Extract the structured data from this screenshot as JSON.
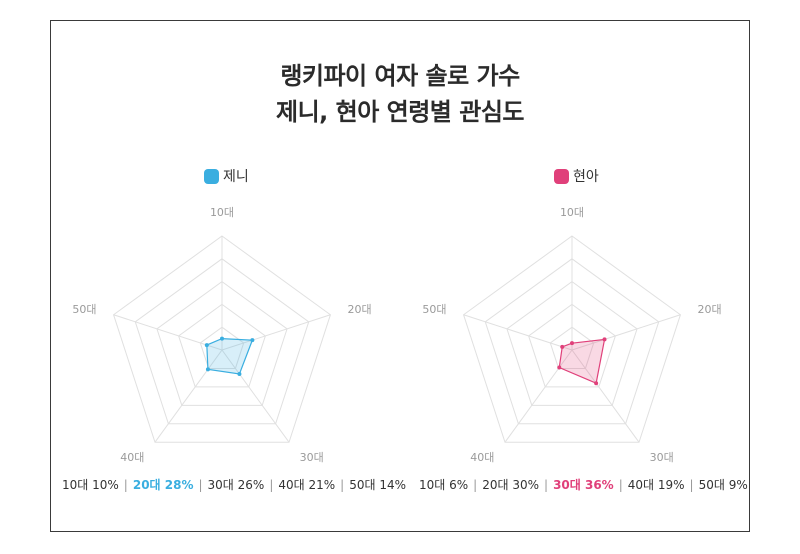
{
  "title_line1": "랭키파이 여자 솔로 가수",
  "title_line2": "제니, 현아 연령별 관심도",
  "colors": {
    "jennie": "#3aaee0",
    "hyuna": "#e0407a",
    "grid": "#e0e0e0",
    "tick": "#9a9a9a"
  },
  "chart_data": [
    {
      "type": "radar",
      "series": [
        {
          "name": "제니",
          "values": [
            10,
            28,
            26,
            21,
            14
          ]
        }
      ],
      "categories": [
        "10대",
        "20대",
        "30대",
        "40대",
        "50대"
      ],
      "rmax": 100,
      "grid_levels": 5,
      "legend_position": "top-center",
      "summary": [
        {
          "text": "10대 10%",
          "highlight": false
        },
        {
          "text": "20대 28%",
          "highlight": true
        },
        {
          "text": "30대 26%",
          "highlight": false
        },
        {
          "text": "40대 21%",
          "highlight": false
        },
        {
          "text": "50대 14%",
          "highlight": false
        }
      ]
    },
    {
      "type": "radar",
      "series": [
        {
          "name": "현아",
          "values": [
            6,
            30,
            36,
            19,
            9
          ]
        }
      ],
      "categories": [
        "10대",
        "20대",
        "30대",
        "40대",
        "50대"
      ],
      "rmax": 100,
      "grid_levels": 5,
      "legend_position": "top-center",
      "summary": [
        {
          "text": "10대 6%",
          "highlight": false
        },
        {
          "text": "20대 30%",
          "highlight": false
        },
        {
          "text": "30대 36%",
          "highlight": true
        },
        {
          "text": "40대 19%",
          "highlight": false
        },
        {
          "text": "50대 9%",
          "highlight": false
        }
      ]
    }
  ]
}
